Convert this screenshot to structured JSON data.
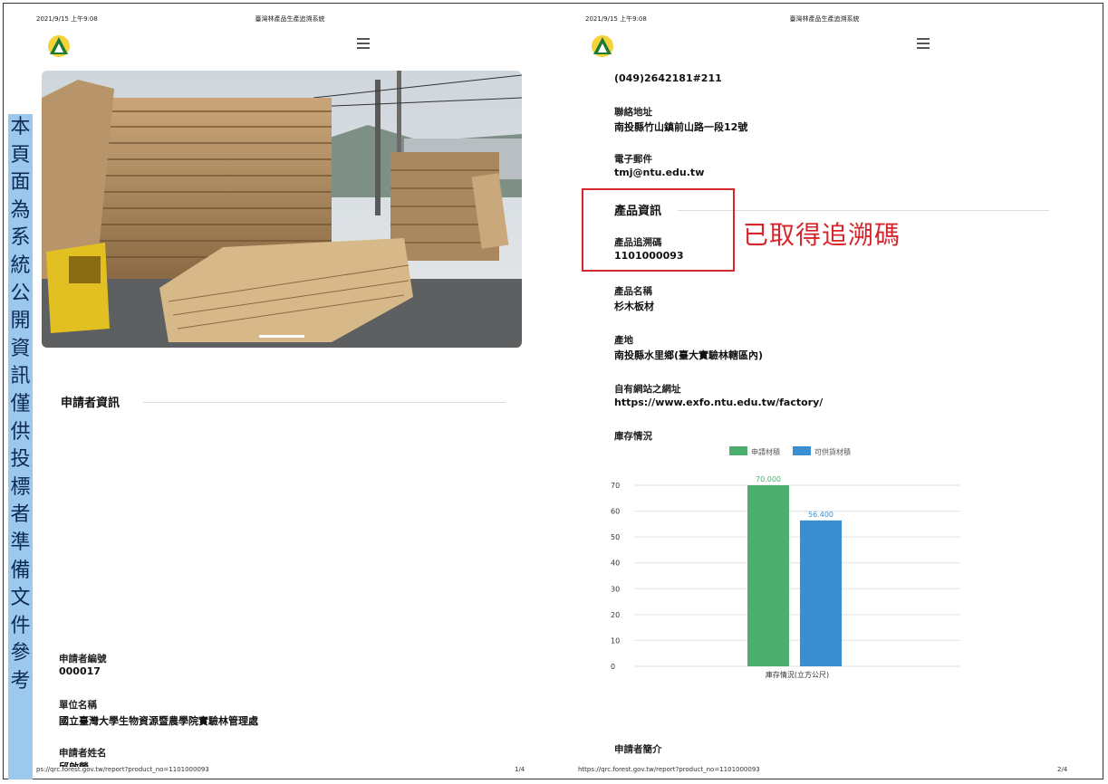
{
  "vertical_note": "本頁面為系統公開資訊僅供投標者準備文件參考",
  "left_page": {
    "header_date": "2021/9/15 上午9:08",
    "header_title": "臺灣林產品生產追溯系統",
    "section_title": "申請者資訊",
    "fields": [
      {
        "label": "申請者編號",
        "value": "000017"
      },
      {
        "label": "單位名稱",
        "value": "國立臺灣大學生物資源暨農學院實驗林管理處"
      },
      {
        "label": "申請者姓名",
        "value": "邱啟榮"
      }
    ],
    "footer_url": "ps://qrc.forest.gov.tw/report?product_no=1101000093",
    "footer_page": "1/4"
  },
  "right_page": {
    "header_date": "2021/9/15 上午9:08",
    "header_title": "臺灣林產品生產追溯系統",
    "phone": "(049)2642181#211",
    "fields_top": [
      {
        "label": "聯絡地址",
        "value": "南投縣竹山鎮前山路一段12號"
      },
      {
        "label": "電子郵件",
        "value": "tmj@ntu.edu.tw"
      }
    ],
    "product_section_title": "產品資訊",
    "trace_label": "產品追溯碼",
    "trace_code": "1101000093",
    "fields_bottom": [
      {
        "label": "產品名稱",
        "value": "杉木板材"
      },
      {
        "label": "產地",
        "value": "南投縣水里鄉(臺大實驗林轄區內)"
      },
      {
        "label": "自有網站之網址",
        "value": "https://www.exfo.ntu.edu.tw/factory/"
      }
    ],
    "stock_label": "庫存情況",
    "intro_label": "申請者簡介",
    "footer_url": "https://qrc.forest.gov.tw/report?product_no=1101000093",
    "footer_page": "2/4"
  },
  "annotation": "已取得追溯碼",
  "chart_data": {
    "type": "bar",
    "categories": [
      "庫存情況(立方公尺)"
    ],
    "series": [
      {
        "name": "申請材積",
        "values": [
          70.0
        ],
        "label": "70.000",
        "color": "#4caf6e"
      },
      {
        "name": "可供貨材積",
        "values": [
          56.4
        ],
        "label": "56.400",
        "color": "#3a8fd0"
      }
    ],
    "xlabel": "庫存情況(立方公尺)",
    "ylim": [
      0,
      70
    ],
    "yticks": [
      0,
      10,
      20,
      30,
      40,
      50,
      60,
      70
    ],
    "legend": "top",
    "grid": true
  }
}
